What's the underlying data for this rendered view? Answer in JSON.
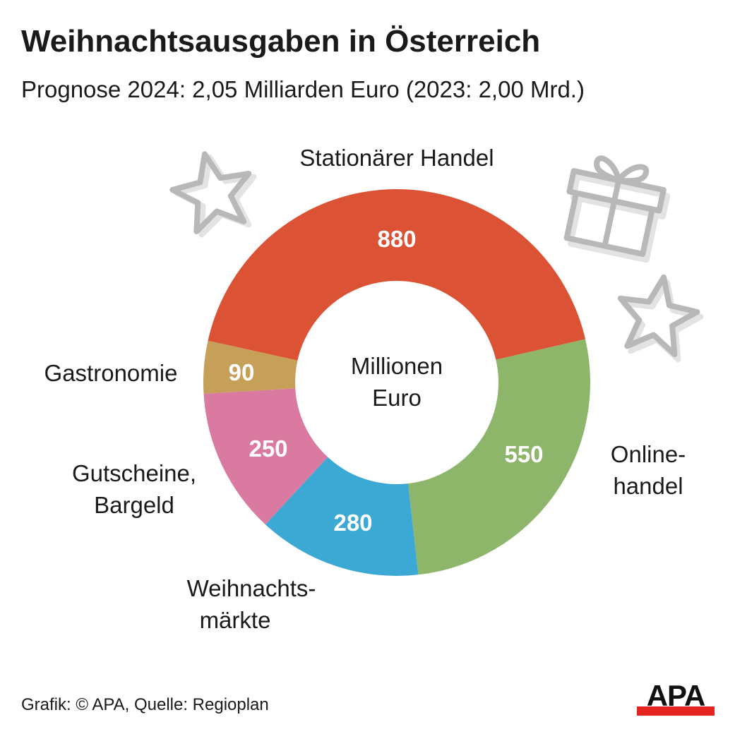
{
  "header": {
    "title": "Weihnachtsausgaben in Österreich",
    "subtitle": "Prognose 2024: 2,05 Milliarden Euro (2023: 2,00 Mrd.)"
  },
  "chart_data": {
    "type": "pie",
    "variant": "donut",
    "title": "Weihnachtsausgaben in Österreich",
    "subtitle": "Prognose 2024: 2,05 Milliarden Euro (2023: 2,00 Mrd.)",
    "center_label": [
      "Millionen",
      "Euro"
    ],
    "unit": "Millionen Euro",
    "slices": [
      {
        "label": [
          "Stationärer Handel"
        ],
        "value": 880,
        "color": "#DB5234"
      },
      {
        "label": [
          "Online-",
          "handel"
        ],
        "value": 550,
        "color": "#8DB66A"
      },
      {
        "label": [
          "Weihnachts-",
          "märkte"
        ],
        "value": 280,
        "color": "#3CA8D4"
      },
      {
        "label": [
          "Gutscheine,",
          "Bargeld"
        ],
        "value": 250,
        "color": "#DB7AA0"
      },
      {
        "label": [
          "Gastronomie"
        ],
        "value": 90,
        "color": "#C6A059"
      }
    ]
  },
  "footer": {
    "source": "Grafik: © APA, Quelle: Regioplan",
    "logo": "APA"
  },
  "decorations": [
    "star-icon",
    "gift-icon",
    "star-icon"
  ]
}
